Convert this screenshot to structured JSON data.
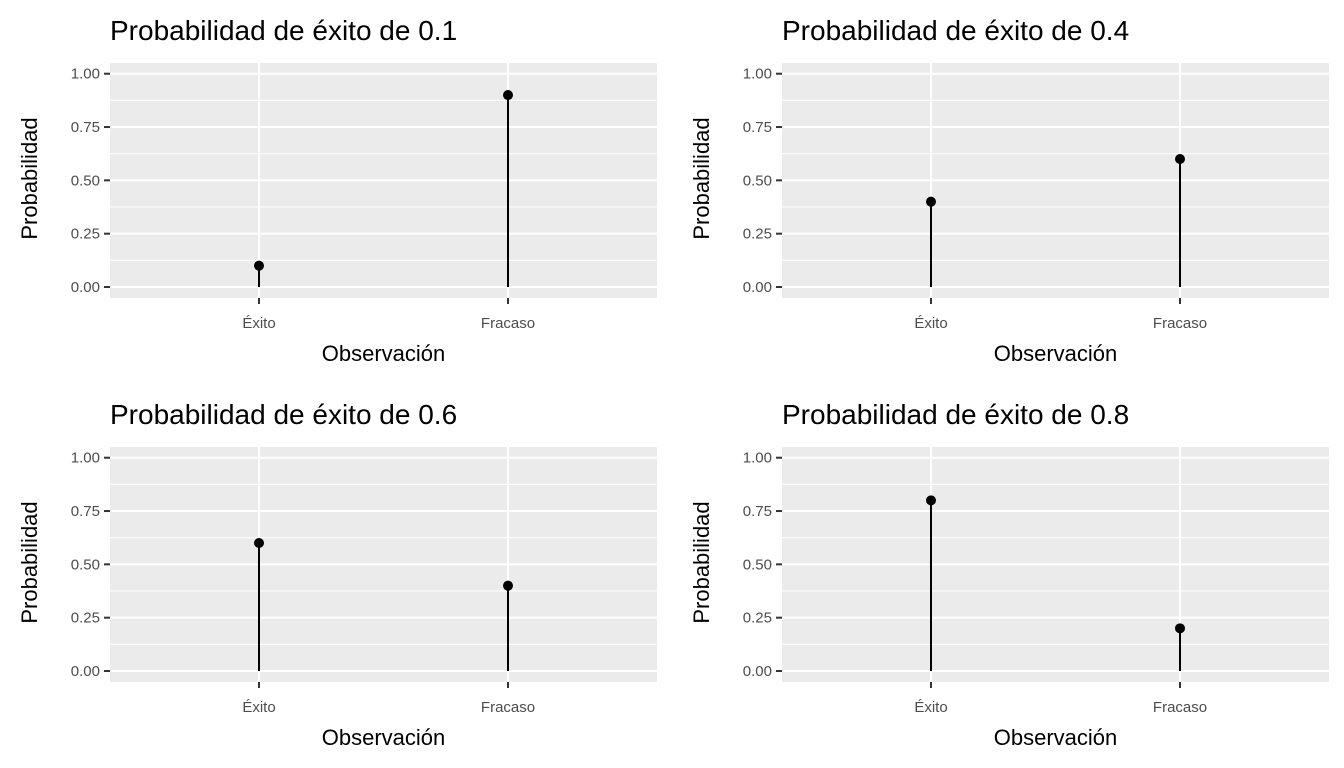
{
  "chart_data": [
    {
      "type": "lollipop",
      "title": "Probabilidad de éxito de 0.1",
      "xlabel": "Observación",
      "ylabel": "Probabilidad",
      "categories": [
        "Éxito",
        "Fracaso"
      ],
      "values": [
        0.1,
        0.9
      ],
      "ylim": [
        0,
        1
      ],
      "yticks": [
        "0.00",
        "0.25",
        "0.50",
        "0.75",
        "1.00"
      ],
      "grid": true
    },
    {
      "type": "lollipop",
      "title": "Probabilidad de éxito de 0.4",
      "xlabel": "Observación",
      "ylabel": "Probabilidad",
      "categories": [
        "Éxito",
        "Fracaso"
      ],
      "values": [
        0.4,
        0.6
      ],
      "ylim": [
        0,
        1
      ],
      "yticks": [
        "0.00",
        "0.25",
        "0.50",
        "0.75",
        "1.00"
      ],
      "grid": true
    },
    {
      "type": "lollipop",
      "title": "Probabilidad de éxito de 0.6",
      "xlabel": "Observación",
      "ylabel": "Probabilidad",
      "categories": [
        "Éxito",
        "Fracaso"
      ],
      "values": [
        0.6,
        0.4
      ],
      "ylim": [
        0,
        1
      ],
      "yticks": [
        "0.00",
        "0.25",
        "0.50",
        "0.75",
        "1.00"
      ],
      "grid": true
    },
    {
      "type": "lollipop",
      "title": "Probabilidad de éxito de 0.8",
      "xlabel": "Observación",
      "ylabel": "Probabilidad",
      "categories": [
        "Éxito",
        "Fracaso"
      ],
      "values": [
        0.8,
        0.2
      ],
      "ylim": [
        0,
        1
      ],
      "yticks": [
        "0.00",
        "0.25",
        "0.50",
        "0.75",
        "1.00"
      ],
      "grid": true
    }
  ],
  "colors": {
    "panel": "#ebebeb",
    "grid": "#ffffff",
    "mark": "#000000",
    "tick_text": "#4d4d4d"
  }
}
